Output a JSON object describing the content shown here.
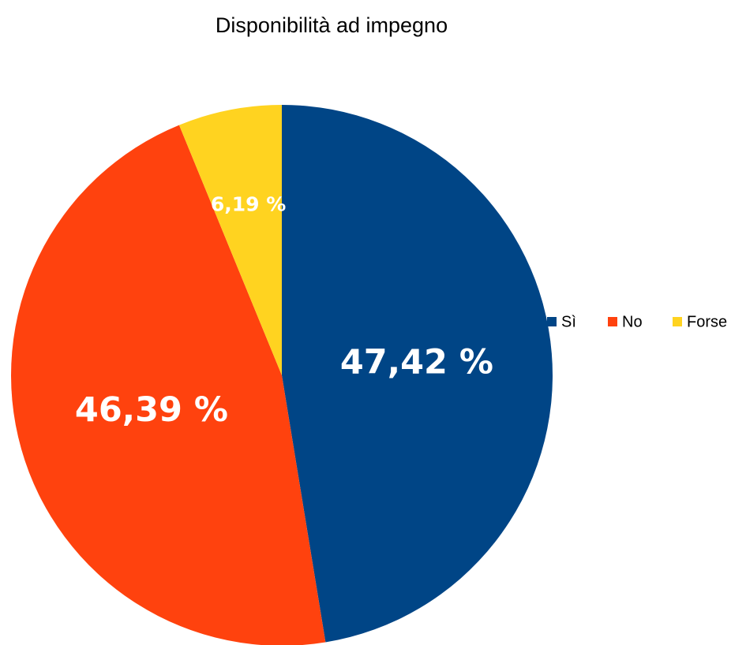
{
  "chart_data": {
    "type": "pie",
    "title": "Disponibilità ad impegno",
    "categories": [
      "Sì",
      "No",
      "Forse"
    ],
    "values": [
      47.42,
      46.39,
      6.19
    ],
    "value_labels": [
      "47,42 %",
      "46,39 %",
      "6,19 %"
    ],
    "colors": [
      "#004586",
      "#ff420e",
      "#ffd320"
    ],
    "legend": "right"
  }
}
